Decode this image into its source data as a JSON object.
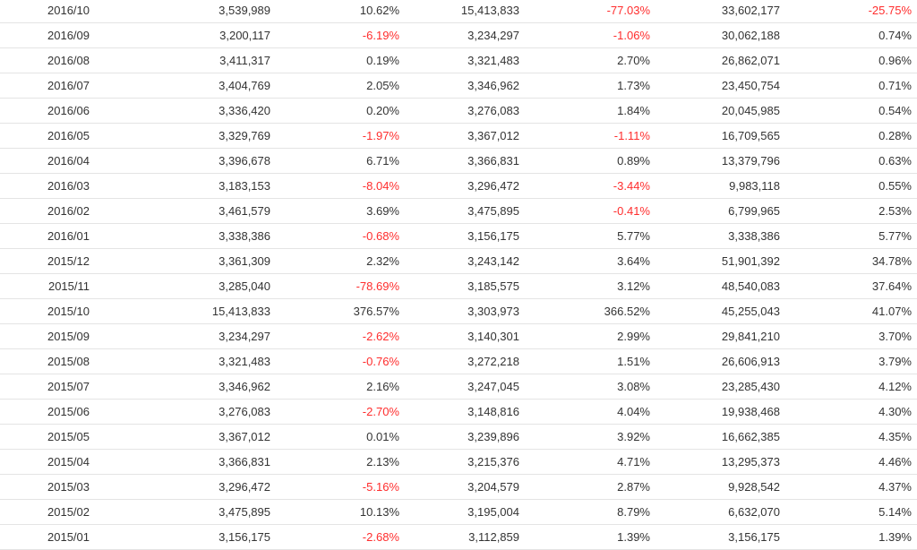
{
  "colors": {
    "text": "#333333",
    "negative": "#ff2d2d",
    "row_border": "#e4e4e4"
  },
  "rows": [
    {
      "period": "2016/10",
      "v1": "3,539,989",
      "p1": "10.62%",
      "v2": "15,413,833",
      "p2": "-77.03%",
      "v3": "33,602,177",
      "p3": "-25.75%"
    },
    {
      "period": "2016/09",
      "v1": "3,200,117",
      "p1": "-6.19%",
      "v2": "3,234,297",
      "p2": "-1.06%",
      "v3": "30,062,188",
      "p3": "0.74%"
    },
    {
      "period": "2016/08",
      "v1": "3,411,317",
      "p1": "0.19%",
      "v2": "3,321,483",
      "p2": "2.70%",
      "v3": "26,862,071",
      "p3": "0.96%"
    },
    {
      "period": "2016/07",
      "v1": "3,404,769",
      "p1": "2.05%",
      "v2": "3,346,962",
      "p2": "1.73%",
      "v3": "23,450,754",
      "p3": "0.71%"
    },
    {
      "period": "2016/06",
      "v1": "3,336,420",
      "p1": "0.20%",
      "v2": "3,276,083",
      "p2": "1.84%",
      "v3": "20,045,985",
      "p3": "0.54%"
    },
    {
      "period": "2016/05",
      "v1": "3,329,769",
      "p1": "-1.97%",
      "v2": "3,367,012",
      "p2": "-1.11%",
      "v3": "16,709,565",
      "p3": "0.28%"
    },
    {
      "period": "2016/04",
      "v1": "3,396,678",
      "p1": "6.71%",
      "v2": "3,366,831",
      "p2": "0.89%",
      "v3": "13,379,796",
      "p3": "0.63%"
    },
    {
      "period": "2016/03",
      "v1": "3,183,153",
      "p1": "-8.04%",
      "v2": "3,296,472",
      "p2": "-3.44%",
      "v3": "9,983,118",
      "p3": "0.55%"
    },
    {
      "period": "2016/02",
      "v1": "3,461,579",
      "p1": "3.69%",
      "v2": "3,475,895",
      "p2": "-0.41%",
      "v3": "6,799,965",
      "p3": "2.53%"
    },
    {
      "period": "2016/01",
      "v1": "3,338,386",
      "p1": "-0.68%",
      "v2": "3,156,175",
      "p2": "5.77%",
      "v3": "3,338,386",
      "p3": "5.77%"
    },
    {
      "period": "2015/12",
      "v1": "3,361,309",
      "p1": "2.32%",
      "v2": "3,243,142",
      "p2": "3.64%",
      "v3": "51,901,392",
      "p3": "34.78%"
    },
    {
      "period": "2015/11",
      "v1": "3,285,040",
      "p1": "-78.69%",
      "v2": "3,185,575",
      "p2": "3.12%",
      "v3": "48,540,083",
      "p3": "37.64%"
    },
    {
      "period": "2015/10",
      "v1": "15,413,833",
      "p1": "376.57%",
      "v2": "3,303,973",
      "p2": "366.52%",
      "v3": "45,255,043",
      "p3": "41.07%"
    },
    {
      "period": "2015/09",
      "v1": "3,234,297",
      "p1": "-2.62%",
      "v2": "3,140,301",
      "p2": "2.99%",
      "v3": "29,841,210",
      "p3": "3.70%"
    },
    {
      "period": "2015/08",
      "v1": "3,321,483",
      "p1": "-0.76%",
      "v2": "3,272,218",
      "p2": "1.51%",
      "v3": "26,606,913",
      "p3": "3.79%"
    },
    {
      "period": "2015/07",
      "v1": "3,346,962",
      "p1": "2.16%",
      "v2": "3,247,045",
      "p2": "3.08%",
      "v3": "23,285,430",
      "p3": "4.12%"
    },
    {
      "period": "2015/06",
      "v1": "3,276,083",
      "p1": "-2.70%",
      "v2": "3,148,816",
      "p2": "4.04%",
      "v3": "19,938,468",
      "p3": "4.30%"
    },
    {
      "period": "2015/05",
      "v1": "3,367,012",
      "p1": "0.01%",
      "v2": "3,239,896",
      "p2": "3.92%",
      "v3": "16,662,385",
      "p3": "4.35%"
    },
    {
      "period": "2015/04",
      "v1": "3,366,831",
      "p1": "2.13%",
      "v2": "3,215,376",
      "p2": "4.71%",
      "v3": "13,295,373",
      "p3": "4.46%"
    },
    {
      "period": "2015/03",
      "v1": "3,296,472",
      "p1": "-5.16%",
      "v2": "3,204,579",
      "p2": "2.87%",
      "v3": "9,928,542",
      "p3": "4.37%"
    },
    {
      "period": "2015/02",
      "v1": "3,475,895",
      "p1": "10.13%",
      "v2": "3,195,004",
      "p2": "8.79%",
      "v3": "6,632,070",
      "p3": "5.14%"
    },
    {
      "period": "2015/01",
      "v1": "3,156,175",
      "p1": "-2.68%",
      "v2": "3,112,859",
      "p2": "1.39%",
      "v3": "3,156,175",
      "p3": "1.39%"
    }
  ]
}
